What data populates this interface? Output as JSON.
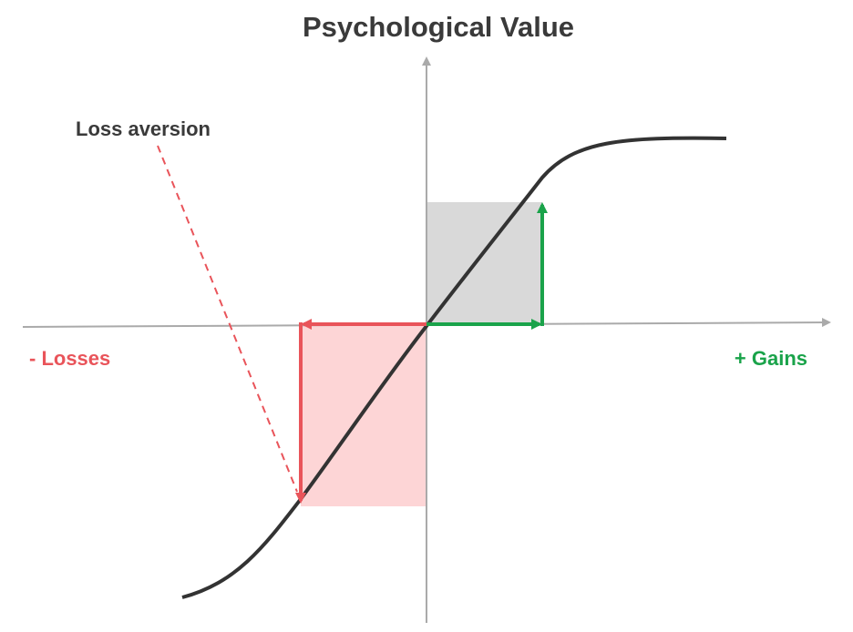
{
  "title": "Psychological Value",
  "annotation": "Loss aversion",
  "labels": {
    "losses": "- Losses",
    "gains": "+ Gains"
  }
}
